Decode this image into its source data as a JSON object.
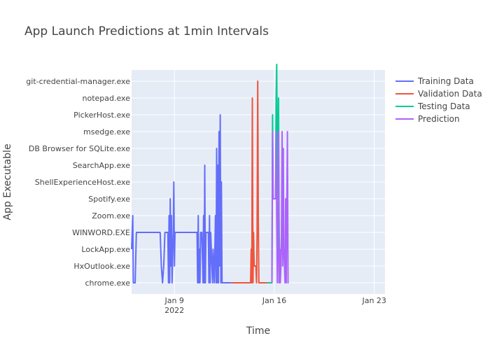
{
  "chart_data": {
    "type": "line",
    "title": "App Launch Predictions at 1min Intervals",
    "xlabel": "Time",
    "ylabel": "App Executable",
    "categories": [
      "chrome.exe",
      "HxOutlook.exe",
      "LockApp.exe",
      "WINWORD.EXE",
      "Zoom.exe",
      "Spotify.exe",
      "ShellExperienceHost.exe",
      "SearchApp.exe",
      "DB Browser for SQLite.exe",
      "msedge.exe",
      "PickerHost.exe",
      "notepad.exe",
      "git-credential-manager.exe"
    ],
    "xlim": [
      "2022-01-06",
      "2022-01-23 18:00"
    ],
    "xticks": [
      {
        "date": "2022-01-09",
        "label": "Jan 9",
        "sublabel": "2022"
      },
      {
        "date": "2022-01-16",
        "label": "Jan 16",
        "sublabel": ""
      },
      {
        "date": "2022-01-23",
        "label": "Jan 23",
        "sublabel": ""
      }
    ],
    "grid": true,
    "legend_position": "top-right",
    "series": [
      {
        "name": "Training Data",
        "color": "#636efa",
        "points": [
          [
            "2022-01-06 00:00",
            2
          ],
          [
            "2022-01-06 01:00",
            3
          ],
          [
            "2022-01-06 02:00",
            4
          ],
          [
            "2022-01-06 03:00",
            0
          ],
          [
            "2022-01-06 06:00",
            0
          ],
          [
            "2022-01-06 08:00",
            3
          ],
          [
            "2022-01-06 12:00",
            3
          ],
          [
            "2022-01-07 12:00",
            3
          ],
          [
            "2022-01-08 00:00",
            3
          ],
          [
            "2022-01-08 02:00",
            1
          ],
          [
            "2022-01-08 04:00",
            0
          ],
          [
            "2022-01-08 06:00",
            1
          ],
          [
            "2022-01-08 08:00",
            3
          ],
          [
            "2022-01-08 13:00",
            3
          ],
          [
            "2022-01-08 14:00",
            0
          ],
          [
            "2022-01-08 15:00",
            4
          ],
          [
            "2022-01-08 16:00",
            0
          ],
          [
            "2022-01-08 17:00",
            5
          ],
          [
            "2022-01-08 18:00",
            1
          ],
          [
            "2022-01-08 19:00",
            4
          ],
          [
            "2022-01-08 20:00",
            0
          ],
          [
            "2022-01-08 22:00",
            3
          ],
          [
            "2022-01-08 23:00",
            6
          ],
          [
            "2022-01-09 00:00",
            1
          ],
          [
            "2022-01-09 01:00",
            3
          ],
          [
            "2022-01-09 06:00",
            3
          ],
          [
            "2022-01-10 00:00",
            3
          ],
          [
            "2022-01-10 14:00",
            3
          ],
          [
            "2022-01-10 15:00",
            0
          ],
          [
            "2022-01-10 16:00",
            4
          ],
          [
            "2022-01-10 17:00",
            0
          ],
          [
            "2022-01-10 18:00",
            2
          ],
          [
            "2022-01-10 19:00",
            0
          ],
          [
            "2022-01-10 20:00",
            3
          ],
          [
            "2022-01-10 22:00",
            3
          ],
          [
            "2022-01-11 00:00",
            0
          ],
          [
            "2022-01-11 01:00",
            4
          ],
          [
            "2022-01-11 02:00",
            0
          ],
          [
            "2022-01-11 03:00",
            7
          ],
          [
            "2022-01-11 04:00",
            0
          ],
          [
            "2022-01-11 05:00",
            3
          ],
          [
            "2022-01-11 09:00",
            3
          ],
          [
            "2022-01-11 10:00",
            0
          ],
          [
            "2022-01-11 11:00",
            4
          ],
          [
            "2022-01-11 12:00",
            0
          ],
          [
            "2022-01-11 13:00",
            3
          ],
          [
            "2022-01-11 16:00",
            0
          ],
          [
            "2022-01-11 17:00",
            2
          ],
          [
            "2022-01-11 19:00",
            0
          ],
          [
            "2022-01-11 21:00",
            4
          ],
          [
            "2022-01-11 22:00",
            0
          ],
          [
            "2022-01-11 23:00",
            8
          ],
          [
            "2022-01-12 00:00",
            0
          ],
          [
            "2022-01-12 01:00",
            7
          ],
          [
            "2022-01-12 02:00",
            0
          ],
          [
            "2022-01-12 03:00",
            9
          ],
          [
            "2022-01-12 04:00",
            1
          ],
          [
            "2022-01-12 05:00",
            10
          ],
          [
            "2022-01-12 06:00",
            0
          ],
          [
            "2022-01-12 07:00",
            6
          ],
          [
            "2022-01-12 08:00",
            0
          ],
          [
            "2022-01-12 12:00",
            0
          ],
          [
            "2022-01-13 00:00",
            0
          ]
        ]
      },
      {
        "name": "Validation Data",
        "color": "#ef553b",
        "points": [
          [
            "2022-01-13 00:00",
            0
          ],
          [
            "2022-01-14 08:00",
            0
          ],
          [
            "2022-01-14 09:00",
            2
          ],
          [
            "2022-01-14 10:00",
            0
          ],
          [
            "2022-01-14 11:00",
            11
          ],
          [
            "2022-01-14 12:00",
            0
          ],
          [
            "2022-01-14 13:00",
            3
          ],
          [
            "2022-01-14 14:00",
            1
          ],
          [
            "2022-01-14 17:00",
            1
          ],
          [
            "2022-01-14 18:00",
            0
          ],
          [
            "2022-01-14 19:00",
            3
          ],
          [
            "2022-01-14 20:00",
            12
          ],
          [
            "2022-01-14 21:00",
            4
          ],
          [
            "2022-01-14 22:00",
            0
          ],
          [
            "2022-01-15 12:00",
            0
          ]
        ]
      },
      {
        "name": "Testing Data",
        "color": "#00cc96",
        "points": [
          [
            "2022-01-15 12:00",
            0
          ],
          [
            "2022-01-15 20:00",
            0
          ],
          [
            "2022-01-15 21:00",
            10
          ],
          [
            "2022-01-15 22:00",
            5
          ],
          [
            "2022-01-16 02:00",
            5
          ],
          [
            "2022-01-16 03:00",
            11
          ],
          [
            "2022-01-16 04:00",
            13
          ],
          [
            "2022-01-16 05:00",
            7
          ],
          [
            "2022-01-16 06:00",
            5
          ],
          [
            "2022-01-16 07:00",
            11
          ],
          [
            "2022-01-16 08:00",
            4
          ],
          [
            "2022-01-16 09:00",
            0
          ]
        ]
      },
      {
        "name": "Prediction",
        "color": "#ab63fa",
        "points": [
          [
            "2022-01-15 20:00",
            0
          ],
          [
            "2022-01-15 21:00",
            9
          ],
          [
            "2022-01-15 22:00",
            5
          ],
          [
            "2022-01-16 02:00",
            5
          ],
          [
            "2022-01-16 03:00",
            9
          ],
          [
            "2022-01-16 04:00",
            4
          ],
          [
            "2022-01-16 05:00",
            0
          ],
          [
            "2022-01-16 06:00",
            3
          ],
          [
            "2022-01-16 07:00",
            9
          ],
          [
            "2022-01-16 08:00",
            0
          ],
          [
            "2022-01-16 09:00",
            2
          ],
          [
            "2022-01-16 10:00",
            0
          ],
          [
            "2022-01-16 11:00",
            1
          ],
          [
            "2022-01-16 12:00",
            3
          ],
          [
            "2022-01-16 13:00",
            9
          ],
          [
            "2022-01-16 14:00",
            1
          ],
          [
            "2022-01-16 15:00",
            8
          ],
          [
            "2022-01-16 16:00",
            2
          ],
          [
            "2022-01-16 17:00",
            1
          ],
          [
            "2022-01-16 18:00",
            0
          ],
          [
            "2022-01-16 19:00",
            5
          ],
          [
            "2022-01-16 20:00",
            0
          ],
          [
            "2022-01-16 21:00",
            5
          ],
          [
            "2022-01-16 22:00",
            9
          ],
          [
            "2022-01-16 23:00",
            0
          ],
          [
            "2022-01-17 00:00",
            0
          ]
        ]
      }
    ]
  }
}
